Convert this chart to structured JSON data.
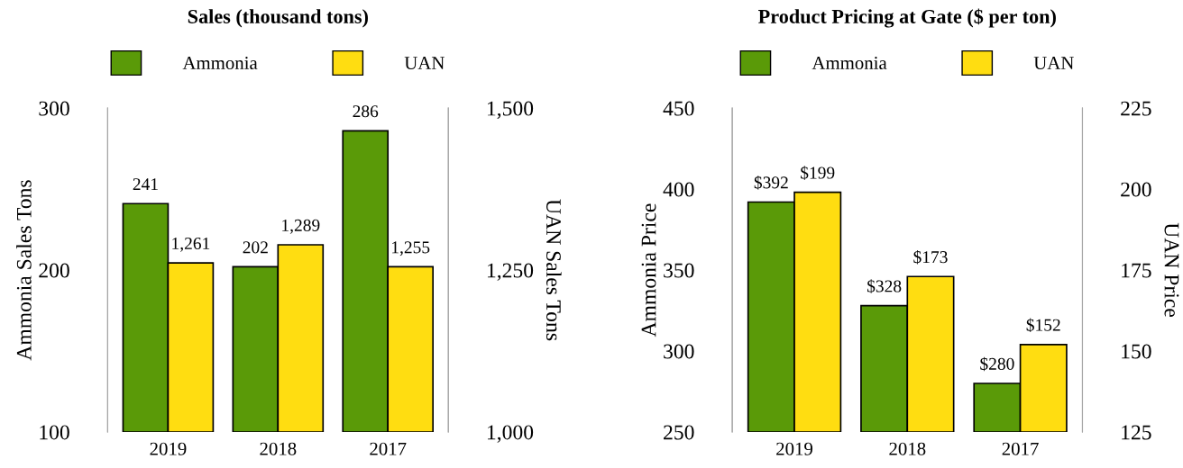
{
  "chart_data": [
    {
      "type": "bar",
      "title": "Sales (thousand tons)",
      "categories": [
        "2019",
        "2018",
        "2017"
      ],
      "ylabel": "Ammonia Sales Tons",
      "y2label": "UAN Sales Tons",
      "series": [
        {
          "name": "Ammonia",
          "color": "#5a9a08",
          "values": [
            241,
            202,
            286
          ],
          "value_labels": [
            "241",
            "202",
            "286"
          ]
        },
        {
          "name": "UAN",
          "color": "#ffdd11",
          "axis": "y2",
          "values": [
            1261,
            1289,
            1255
          ],
          "value_labels": [
            "1,261",
            "1,289",
            "1,255"
          ]
        }
      ],
      "ylim": [
        100,
        300
      ],
      "yticks": [
        100,
        200,
        300
      ],
      "y2lim": [
        1000,
        1500
      ],
      "y2ticks": [
        {
          "value": 1000,
          "label": "1,000"
        },
        {
          "value": 1250,
          "label": "1,250"
        },
        {
          "value": 1500,
          "label": "1,500"
        }
      ],
      "legend": "top",
      "grid": false
    },
    {
      "type": "bar",
      "title": "Product Pricing at Gate ($ per ton)",
      "categories": [
        "2019",
        "2018",
        "2017"
      ],
      "ylabel": "Ammonia Price",
      "y2label": "UAN Price",
      "series": [
        {
          "name": "Ammonia",
          "color": "#5a9a08",
          "values": [
            392,
            328,
            280
          ],
          "value_labels": [
            "$392",
            "$328",
            "$280"
          ]
        },
        {
          "name": "UAN",
          "color": "#ffdd11",
          "axis": "y2",
          "values": [
            199,
            173,
            152
          ],
          "value_labels": [
            "$199",
            "$173",
            "$152"
          ]
        }
      ],
      "ylim": [
        250,
        450
      ],
      "yticks": [
        250,
        300,
        350,
        400,
        450
      ],
      "y2lim": [
        125,
        225
      ],
      "y2ticks": [
        125,
        150,
        175,
        200,
        225
      ],
      "legend": "top",
      "grid": false
    }
  ]
}
